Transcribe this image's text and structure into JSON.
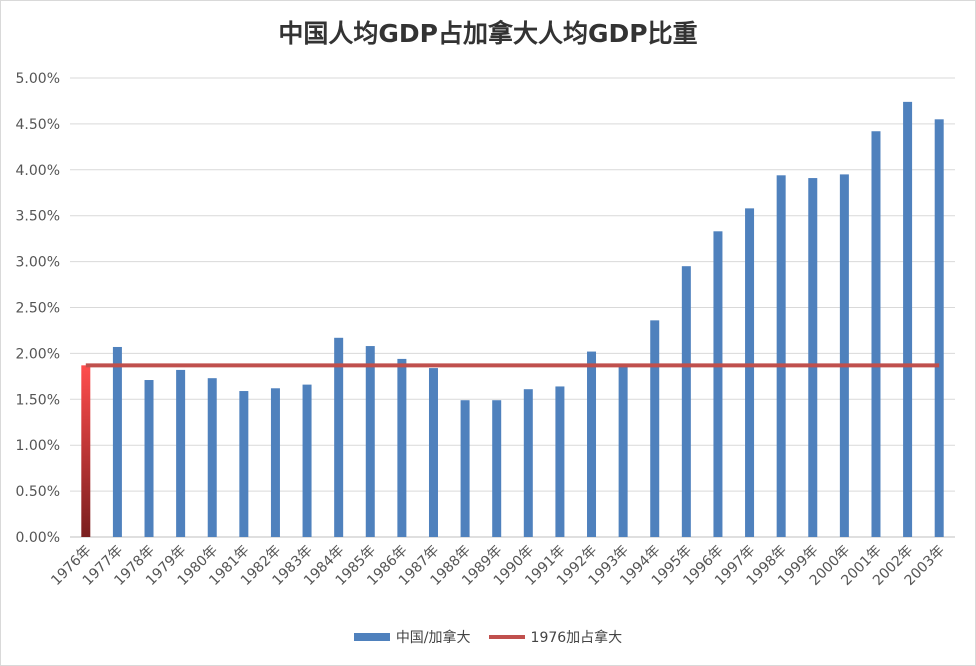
{
  "chart_data": {
    "type": "bar",
    "title": "中国人均GDP占加拿大人均GDP比重",
    "categories": [
      "1976年",
      "1977年",
      "1978年",
      "1979年",
      "1980年",
      "1981年",
      "1982年",
      "1983年",
      "1984年",
      "1985年",
      "1986年",
      "1987年",
      "1988年",
      "1989年",
      "1990年",
      "1991年",
      "1992年",
      "1993年",
      "1994年",
      "1995年",
      "1996年",
      "1997年",
      "1998年",
      "1999年",
      "2000年",
      "2001年",
      "2002年",
      "2003年"
    ],
    "series": [
      {
        "name": "中国/加拿大",
        "type": "bar",
        "color": "#4f81bd",
        "values": [
          1.87,
          2.07,
          1.71,
          1.82,
          1.73,
          1.59,
          1.62,
          1.66,
          2.17,
          2.08,
          1.94,
          1.84,
          1.49,
          1.49,
          1.61,
          1.64,
          2.02,
          1.87,
          2.36,
          2.95,
          3.33,
          3.58,
          3.94,
          3.91,
          3.95,
          4.42,
          4.74,
          4.55
        ]
      },
      {
        "name": "1976加占拿大",
        "type": "line",
        "color": "#c0504d",
        "values": [
          1.87,
          1.87,
          1.87,
          1.87,
          1.87,
          1.87,
          1.87,
          1.87,
          1.87,
          1.87,
          1.87,
          1.87,
          1.87,
          1.87,
          1.87,
          1.87,
          1.87,
          1.87,
          1.87,
          1.87,
          1.87,
          1.87,
          1.87,
          1.87,
          1.87,
          1.87,
          1.87,
          1.87
        ]
      }
    ],
    "ylim": [
      0,
      5
    ],
    "yticks": [
      "0.00%",
      "0.50%",
      "1.00%",
      "1.50%",
      "2.00%",
      "2.50%",
      "3.00%",
      "3.50%",
      "4.00%",
      "4.50%",
      "5.00%"
    ],
    "grid": true,
    "legend": "bottom"
  },
  "legend_labels": {
    "bar": "中国/加拿大",
    "line": "1976加占拿大"
  }
}
